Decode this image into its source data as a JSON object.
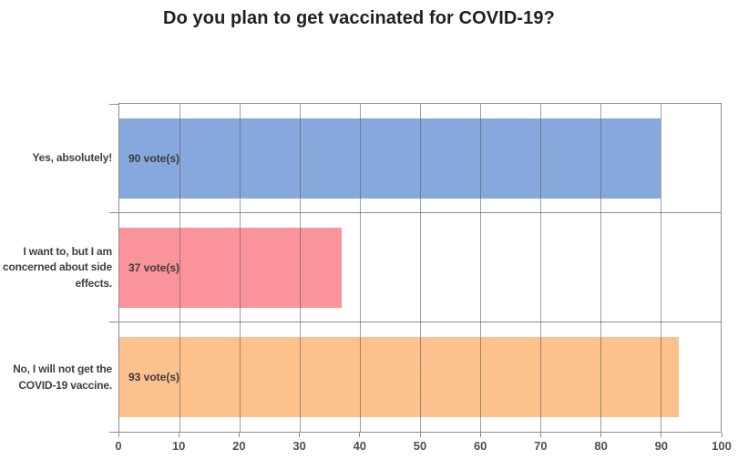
{
  "header": {
    "title": "Do you plan to get vaccinated for COVID-19?"
  },
  "chart_data": {
    "type": "bar",
    "orientation": "horizontal",
    "title": "Do you plan to get vaccinated for COVID-19?",
    "categories": [
      "Yes, absolutely!",
      "I want to, but I am concerned about side effects.",
      "No, I will not get the COVID-19 vaccine."
    ],
    "values": [
      90,
      37,
      93
    ],
    "bar_labels": [
      "90 vote(s)",
      "37 vote(s)",
      "93 vote(s)"
    ],
    "bar_colors": [
      "#87a8dd",
      "#fb939b",
      "#fcc18c"
    ],
    "xlabel": "",
    "ylabel": "",
    "xlim": [
      0,
      100
    ],
    "x_ticks": [
      0,
      10,
      20,
      30,
      40,
      50,
      60,
      70,
      80,
      90,
      100
    ],
    "grid": true,
    "legend_position": "none"
  },
  "colors": {
    "grid": "#999999",
    "axis_border": "#8d8d8d",
    "title_text": "#1f1f1f",
    "category_text": "#3f3f3f",
    "value_text": "#3b3b3b",
    "tick_text": "#4f4f4f",
    "background": "#ffffff"
  }
}
